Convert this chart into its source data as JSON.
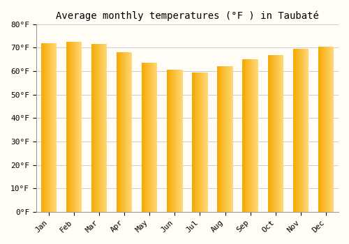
{
  "title": "Average monthly temperatures (°F ) in Taubaté",
  "months": [
    "Jan",
    "Feb",
    "Mar",
    "Apr",
    "May",
    "Jun",
    "Jul",
    "Aug",
    "Sep",
    "Oct",
    "Nov",
    "Dec"
  ],
  "values": [
    72,
    72.5,
    71.5,
    68,
    63.5,
    60.5,
    59.5,
    62,
    65,
    67,
    69.5,
    70.5
  ],
  "bar_color_left": "#F5A800",
  "bar_color_right": "#FFD878",
  "ylim": [
    0,
    80
  ],
  "yticks": [
    0,
    10,
    20,
    30,
    40,
    50,
    60,
    70,
    80
  ],
  "background_color": "#FFFDF5",
  "grid_color": "#CCCCCC",
  "title_fontsize": 10,
  "tick_fontsize": 8,
  "font_family": "monospace"
}
